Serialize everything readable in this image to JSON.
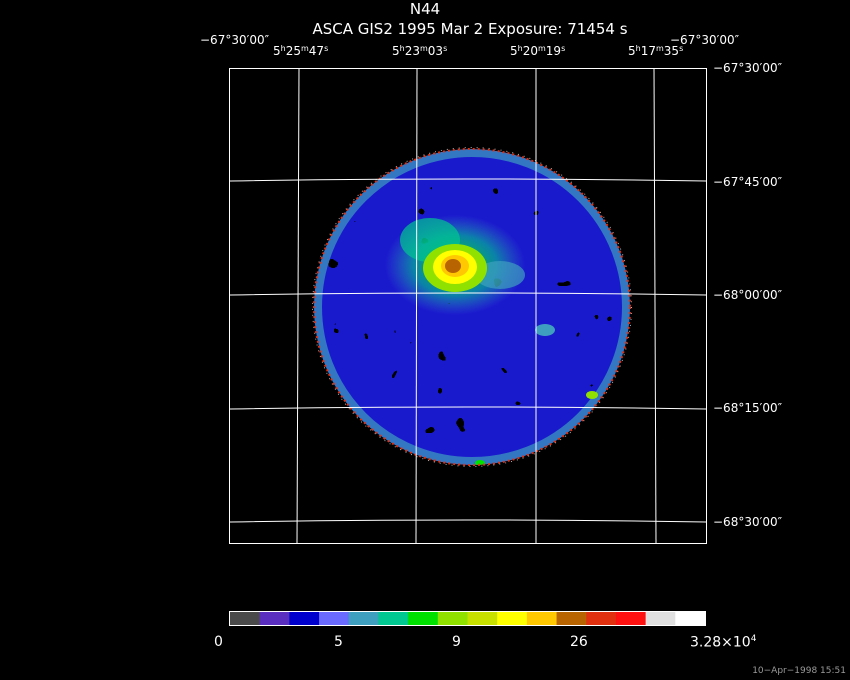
{
  "header": {
    "title": "N44",
    "subtitle": "ASCA GIS2   1995 Mar  2    Exposure: 71454 s"
  },
  "axes": {
    "corner_left": "−67°30′00″",
    "corner_right": "−67°30′00″",
    "ra_labels": [
      {
        "h": "5",
        "m": "25",
        "s": "47"
      },
      {
        "h": "5",
        "m": "23",
        "s": "03"
      },
      {
        "h": "5",
        "m": "20",
        "s": "19"
      },
      {
        "h": "5",
        "m": "17",
        "s": "35"
      }
    ],
    "dec_labels": [
      "−67°30′00″",
      "−67°45′00″",
      "−68°00′00″",
      "−68°15′00″",
      "−68°30′00″"
    ]
  },
  "colorbar": {
    "colors": [
      "#4a4a4a",
      "#5a2fbf",
      "#0000cc",
      "#6a6aff",
      "#3f9fbf",
      "#00c890",
      "#00e000",
      "#90e000",
      "#c8e000",
      "#ffff00",
      "#ffc800",
      "#b86400",
      "#e03010",
      "#ff1010",
      "#e0e0e0",
      "#ffffff"
    ],
    "labels": [
      {
        "text": "0",
        "sup": ""
      },
      {
        "text": "5",
        "sup": ""
      },
      {
        "text": "9",
        "sup": ""
      },
      {
        "text": "26",
        "sup": ""
      },
      {
        "text": "3.28×10",
        "sup": "4"
      }
    ]
  },
  "footer": {
    "timestamp": "10−Apr−1998 15:51"
  }
}
